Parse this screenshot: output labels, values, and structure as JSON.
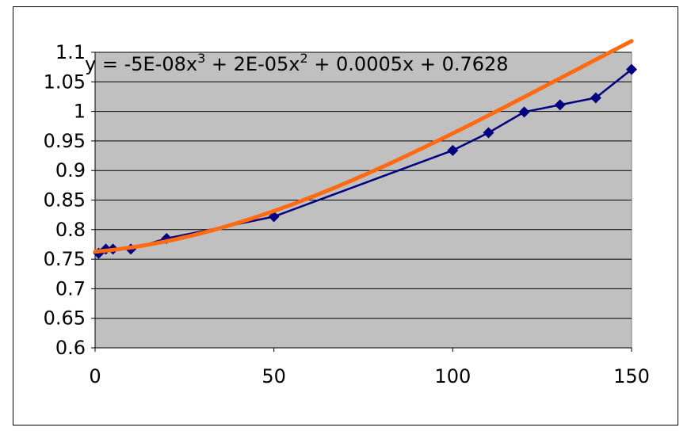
{
  "chart_data": {
    "type": "scatter",
    "x": [
      1,
      3,
      5,
      10,
      20,
      50,
      100,
      110,
      120,
      130,
      140,
      150
    ],
    "y": [
      0.76,
      0.767,
      0.767,
      0.767,
      0.785,
      0.822,
      0.934,
      0.964,
      0.999,
      1.011,
      1.023,
      1.071
    ],
    "xlim": [
      0,
      150
    ],
    "ylim": [
      0.6,
      1.1
    ],
    "x_ticks": [
      "0",
      "50",
      "100",
      "150"
    ],
    "y_ticks": [
      "0.6",
      "0.65",
      "0.7",
      "0.75",
      "0.8",
      "0.85",
      "0.9",
      "0.95",
      "1",
      "1.05",
      "1.1"
    ],
    "grid": "horizontal",
    "trendline": {
      "type": "polynomial",
      "coefficients": [
        -5e-08,
        2e-05,
        0.0005,
        0.7628
      ],
      "equation_parts": [
        "y = -5E-08x",
        "3",
        " + 2E-05x",
        "2",
        " + 0.0005x + 0.7628"
      ]
    },
    "colors": {
      "plot_background": "#c0c0c0",
      "series": "#000080",
      "trendline": "#ff6a13",
      "grid": "#000000"
    },
    "legend": "none"
  }
}
